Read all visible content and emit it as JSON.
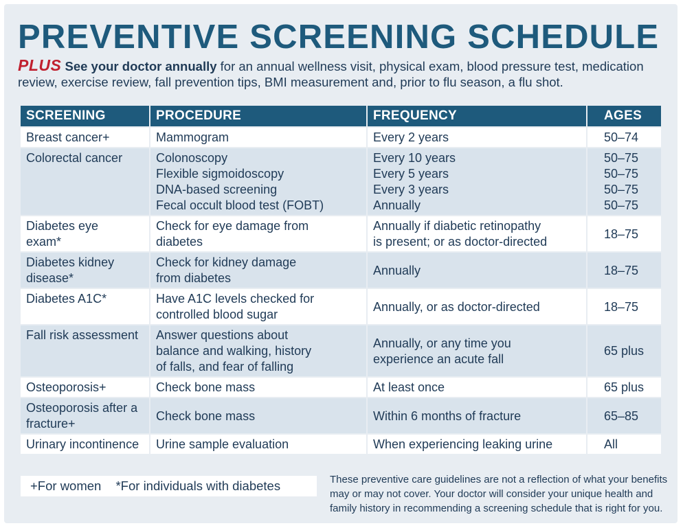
{
  "title": "PREVENTIVE SCREENING SCHEDULE",
  "intro": {
    "plus": "PLUS",
    "bold": "See your doctor annually",
    "rest": " for an annual wellness visit, physical exam, blood pressure test, medication review, exercise review, fall prevention tips, BMI measurement and, prior to flu season, a flu shot."
  },
  "headers": [
    "SCREENING",
    "PROCEDURE",
    "FREQUENCY",
    "AGES"
  ],
  "rows": [
    {
      "screening": [
        "Breast cancer+"
      ],
      "procedure": [
        "Mammogram"
      ],
      "frequency": [
        "Every 2 years"
      ],
      "ages": [
        "50–74"
      ]
    },
    {
      "screening": [
        "Colorectal cancer"
      ],
      "procedure": [
        "Colonoscopy",
        "Flexible sigmoidoscopy",
        "DNA-based screening",
        "Fecal occult blood test (FOBT)"
      ],
      "frequency": [
        "Every 10 years",
        "Every 5 years",
        "Every 3 years",
        "Annually"
      ],
      "ages": [
        "50–75",
        "50–75",
        "50–75",
        "50–75"
      ]
    },
    {
      "screening": [
        "Diabetes eye",
        "exam*"
      ],
      "procedure": [
        "Check for eye damage from",
        "diabetes"
      ],
      "frequency": [
        "Annually if diabetic retinopathy",
        "is present; or as doctor-directed"
      ],
      "ages": [
        "18–75"
      ]
    },
    {
      "screening": [
        "Diabetes kidney",
        "disease*"
      ],
      "procedure": [
        "Check for kidney damage",
        "from diabetes"
      ],
      "frequency": [
        "Annually"
      ],
      "ages": [
        "18–75"
      ]
    },
    {
      "screening": [
        "Diabetes A1C*"
      ],
      "procedure": [
        "Have A1C levels checked for",
        "controlled blood sugar"
      ],
      "frequency": [
        "Annually, or as doctor-directed"
      ],
      "ages": [
        "18–75"
      ]
    },
    {
      "screening": [
        "Fall risk assessment"
      ],
      "procedure": [
        "Answer questions about",
        "balance and walking, history",
        "of falls, and fear of falling"
      ],
      "frequency": [
        "Annually, or any time you",
        "experience an acute fall"
      ],
      "ages": [
        "65 plus"
      ]
    },
    {
      "screening": [
        "Osteoporosis+"
      ],
      "procedure": [
        "Check bone mass"
      ],
      "frequency": [
        "At least once"
      ],
      "ages": [
        "65 plus"
      ]
    },
    {
      "screening": [
        "Osteoporosis after a",
        "fracture+"
      ],
      "procedure": [
        "Check bone mass"
      ],
      "frequency": [
        "Within 6 months of fracture"
      ],
      "ages": [
        "65–85"
      ]
    },
    {
      "screening": [
        "Urinary incontinence"
      ],
      "procedure": [
        "Urine sample evaluation"
      ],
      "frequency": [
        "When experiencing leaking urine"
      ],
      "ages": [
        "All"
      ]
    }
  ],
  "legend": [
    "+For women",
    "*For individuals with diabetes"
  ],
  "disclaimer": "These preventive care guidelines are not a reflection of what your benefits may or may not cover. Your doctor will consider your unique health and family history in recommending a screening schedule that is right for you."
}
